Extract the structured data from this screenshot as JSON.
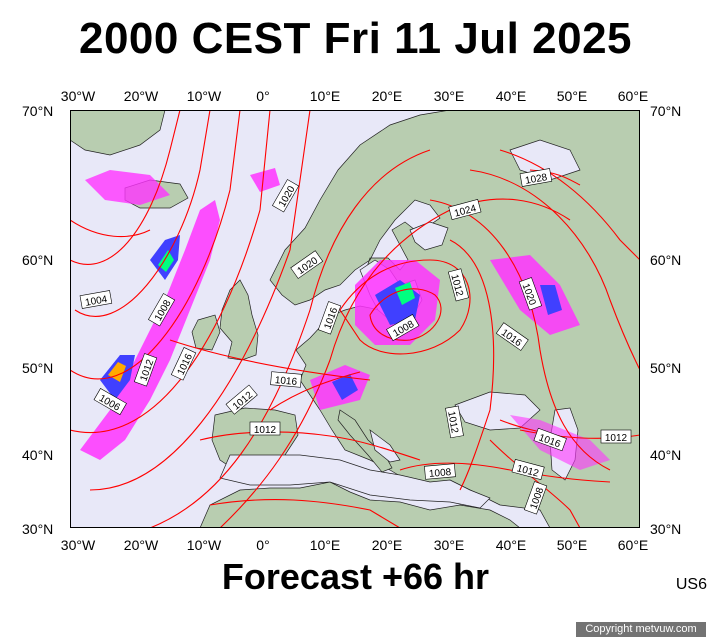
{
  "title": "2000 CEST Fri 11 Jul 2025",
  "footer": "Forecast +66 hr",
  "code": "US6",
  "copyright": "Copyright metvuw.com",
  "longitude_labels": [
    "30°W",
    "20°W",
    "10°W",
    "0°",
    "10°E",
    "20°E",
    "30°E",
    "40°E",
    "50°E",
    "60°E"
  ],
  "latitude_labels": [
    "70°N",
    "60°N",
    "50°N",
    "40°N",
    "30°N"
  ],
  "isobar_labels": [
    "1028",
    "1024",
    "1020",
    "1020",
    "1020",
    "1016",
    "1016",
    "1016",
    "1016",
    "1016",
    "1012",
    "1012",
    "1012",
    "1012",
    "1012",
    "1012",
    "1012",
    "1008",
    "1008",
    "1008",
    "1008",
    "1004",
    "1006"
  ],
  "colors": {
    "sea": "#e8e8f8",
    "land": "#b8cdb0",
    "isobar": "#ff0000",
    "rain_light": "#ff33ff",
    "rain_mid": "#4040ff",
    "rain_heavy": "#00ff80"
  }
}
